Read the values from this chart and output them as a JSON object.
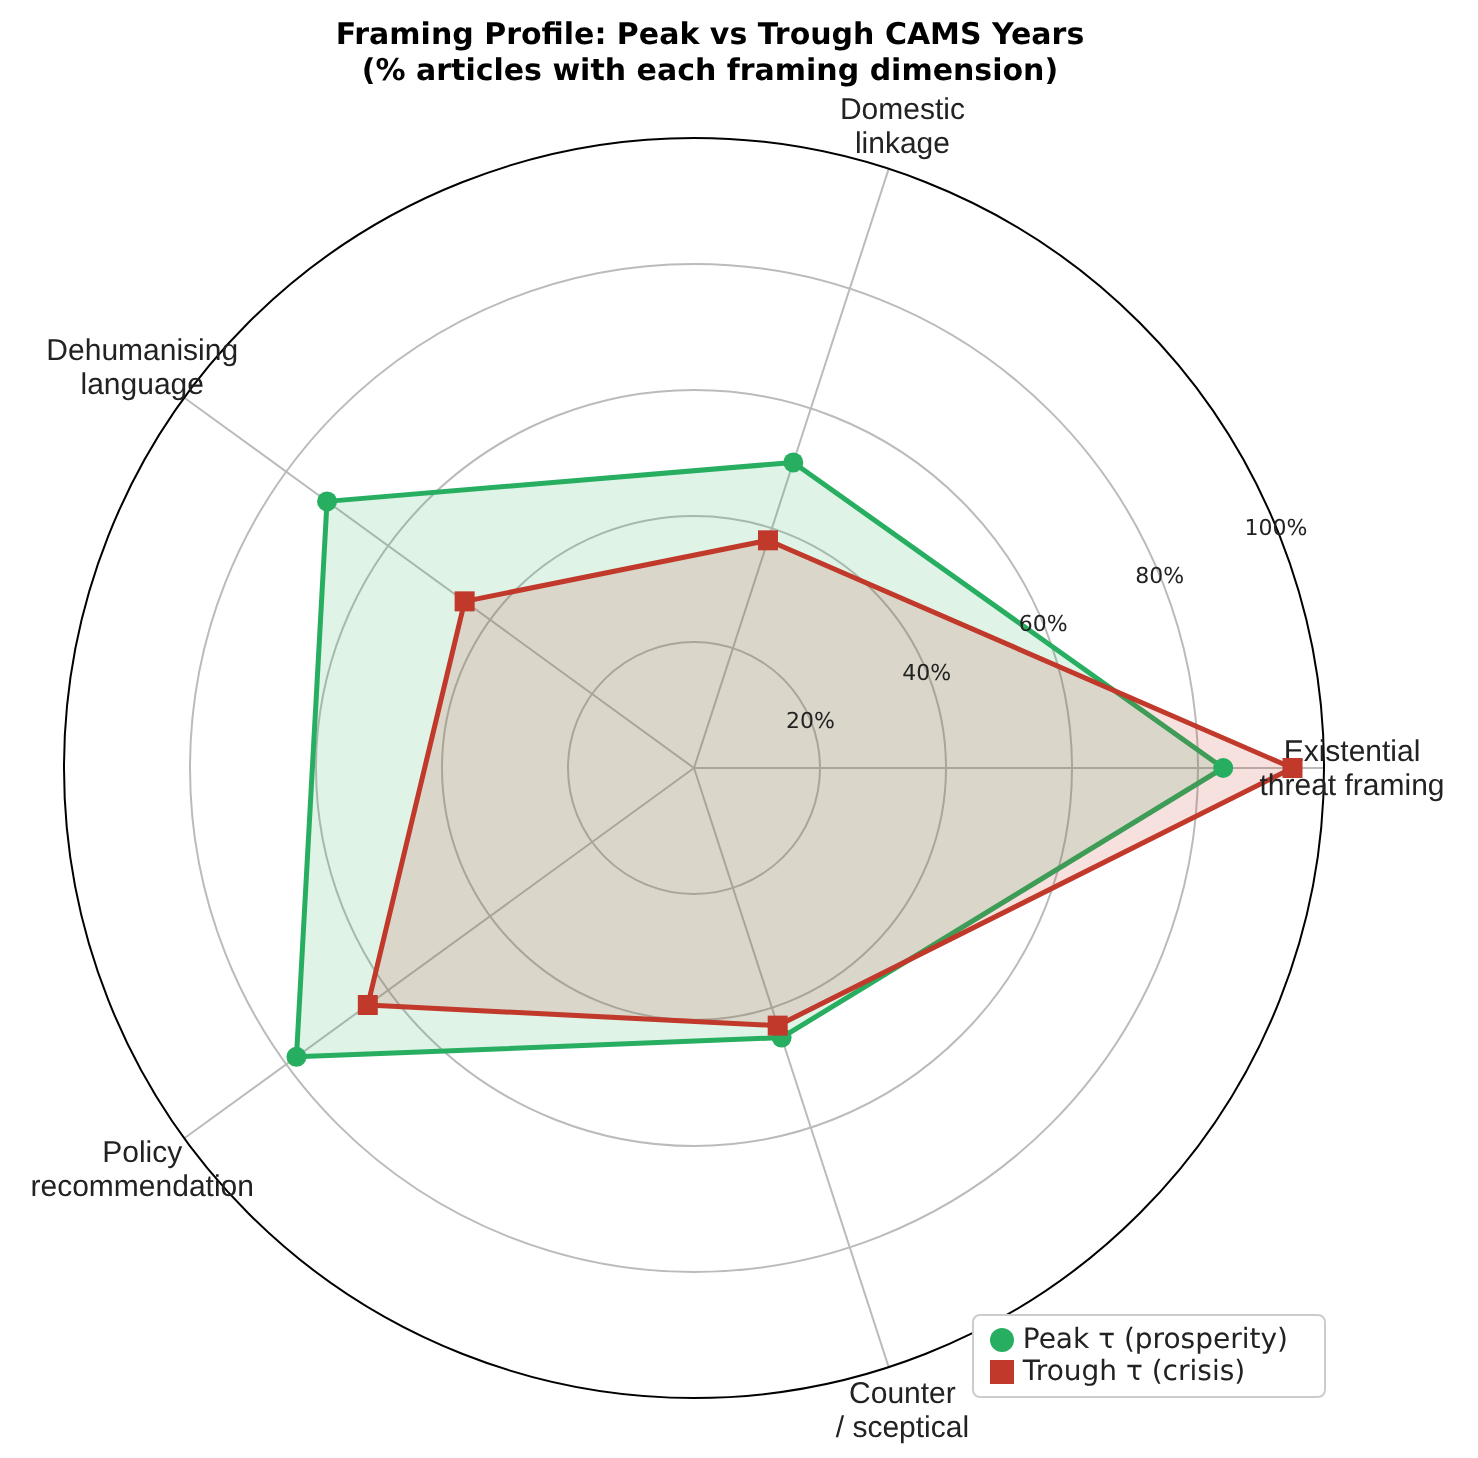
{
  "chart_data": {
    "type": "radar",
    "title": "Framing Profile: Peak vs Trough CAMS Years\n(% articles with each framing dimension)",
    "categories": [
      "Domestic linkage",
      "Existential threat framing",
      "Counter / sceptical",
      "Policy recommendation",
      "Dehumanising language"
    ],
    "series": [
      {
        "name": "Peak τ (prosperity)",
        "color": "#27ae60",
        "values": [
          51,
          84,
          45,
          78,
          72
        ],
        "marker": "circle"
      },
      {
        "name": "Trough τ (crisis)",
        "color": "#c0392b",
        "values": [
          38,
          95,
          43,
          64,
          45
        ],
        "marker": "square"
      }
    ],
    "ylim": [
      0,
      100
    ],
    "yticks": [
      {
        "value": 20,
        "label": "20%"
      },
      {
        "value": 40,
        "label": "40%"
      },
      {
        "value": 60,
        "label": "60%"
      },
      {
        "value": 80,
        "label": "80%"
      },
      {
        "value": 100,
        "label": "100%"
      }
    ],
    "grid": true,
    "legend": "bottom right",
    "line_style": "solid"
  }
}
